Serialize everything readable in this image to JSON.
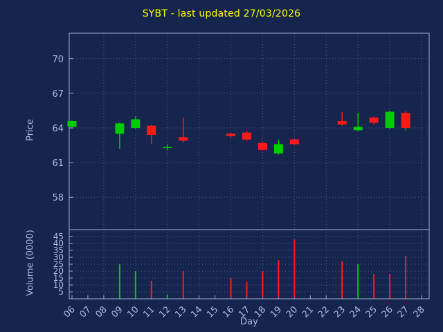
{
  "colors": {
    "background": "#16254d",
    "frame": "#9db0d8",
    "grid": "#4a5a8c",
    "tick_text": "#aebbe0",
    "title": "#ffff00",
    "up": "#00cc00",
    "down": "#ff1a1a"
  },
  "chart_data": {
    "type": "candlestick",
    "title": "SYBT - last updated 27/03/2026",
    "xlabel": "Day",
    "price_ylabel": "Price",
    "volume_ylabel": "Volume (0000)",
    "x_ticks": [
      "06",
      "07",
      "08",
      "09",
      "10",
      "11",
      "12",
      "13",
      "14",
      "15",
      "16",
      "17",
      "18",
      "19",
      "20",
      "21",
      "22",
      "23",
      "24",
      "25",
      "26",
      "27",
      "28"
    ],
    "price_ticks": [
      58,
      61,
      64,
      67,
      70
    ],
    "price_range": [
      55.2,
      72.2
    ],
    "volume_ticks": [
      5,
      10,
      15,
      20,
      25,
      30,
      35,
      40,
      45
    ],
    "volume_range": [
      0,
      50
    ],
    "grid": "dotted",
    "legend": "none",
    "candles": [
      {
        "day": "06",
        "open": 64.1,
        "high": 64.65,
        "low": 64.05,
        "close": 64.6,
        "volume": 0,
        "vol_dir": "up"
      },
      {
        "day": "09",
        "open": 63.5,
        "high": 64.45,
        "low": 62.2,
        "close": 64.4,
        "volume": 25,
        "vol_dir": "up"
      },
      {
        "day": "10",
        "open": 64.0,
        "high": 65.0,
        "low": 63.9,
        "close": 64.75,
        "volume": 20,
        "vol_dir": "up"
      },
      {
        "day": "11",
        "open": 64.2,
        "high": 64.25,
        "low": 62.6,
        "close": 63.4,
        "volume": 13,
        "vol_dir": "down"
      },
      {
        "day": "12",
        "open": 62.3,
        "high": 62.55,
        "low": 62.05,
        "close": 62.35,
        "volume": 3,
        "vol_dir": "up"
      },
      {
        "day": "13",
        "open": 63.2,
        "high": 64.9,
        "low": 62.75,
        "close": 62.9,
        "volume": 20,
        "vol_dir": "down"
      },
      {
        "day": "16",
        "open": 63.5,
        "high": 63.6,
        "low": 63.15,
        "close": 63.3,
        "volume": 15,
        "vol_dir": "down"
      },
      {
        "day": "17",
        "open": 63.6,
        "high": 63.75,
        "low": 62.9,
        "close": 63.0,
        "volume": 12,
        "vol_dir": "down"
      },
      {
        "day": "18",
        "open": 62.7,
        "high": 62.8,
        "low": 62.05,
        "close": 62.1,
        "volume": 20,
        "vol_dir": "down"
      },
      {
        "day": "19",
        "open": 61.8,
        "high": 63.0,
        "low": 61.7,
        "close": 62.6,
        "volume": 28,
        "vol_dir": "down"
      },
      {
        "day": "20",
        "open": 63.0,
        "high": 63.05,
        "low": 62.5,
        "close": 62.6,
        "volume": 43,
        "vol_dir": "down"
      },
      {
        "day": "23",
        "open": 64.6,
        "high": 65.4,
        "low": 64.2,
        "close": 64.3,
        "volume": 27,
        "vol_dir": "down"
      },
      {
        "day": "24",
        "open": 63.8,
        "high": 65.3,
        "low": 63.7,
        "close": 64.1,
        "volume": 25,
        "vol_dir": "up"
      },
      {
        "day": "25",
        "open": 64.9,
        "high": 65.0,
        "low": 64.3,
        "close": 64.45,
        "volume": 18,
        "vol_dir": "down"
      },
      {
        "day": "26",
        "open": 64.0,
        "high": 65.5,
        "low": 63.9,
        "close": 65.4,
        "volume": 18,
        "vol_dir": "down"
      },
      {
        "day": "27",
        "open": 65.3,
        "high": 65.45,
        "low": 63.75,
        "close": 64.0,
        "volume": 31,
        "vol_dir": "down"
      }
    ]
  }
}
